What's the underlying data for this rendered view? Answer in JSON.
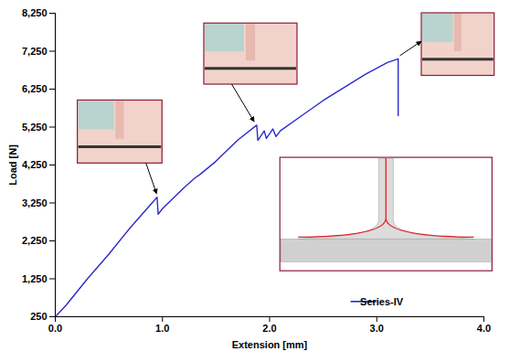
{
  "chart_data": {
    "type": "line",
    "x_label": "Extension [mm]",
    "y_label": "Load [N]",
    "x": [
      0,
      0.1,
      0.3,
      0.5,
      0.7,
      0.95,
      0.96,
      1.0,
      1.2,
      1.3,
      1.35,
      1.5,
      1.7,
      1.88,
      1.89,
      1.95,
      1.97,
      2.03,
      2.06,
      2.1,
      2.3,
      2.5,
      2.7,
      2.9,
      3.1,
      3.2,
      3.2
    ],
    "series": [
      {
        "name": "Series-IV",
        "color": "#2a2acb",
        "values": [
          250,
          550,
          1250,
          1900,
          2600,
          3400,
          2950,
          3100,
          3650,
          3900,
          4000,
          4350,
          4900,
          5300,
          4900,
          5150,
          4950,
          5200,
          5000,
          5150,
          5550,
          5950,
          6300,
          6650,
          6950,
          7050,
          5550
        ]
      }
    ],
    "xlim": [
      0,
      4
    ],
    "xticks": [
      0,
      1,
      2,
      3,
      4
    ],
    "ylim": [
      250,
      8250
    ],
    "yticks": [
      250,
      1250,
      2250,
      3250,
      4250,
      5250,
      6250,
      7250,
      8250
    ],
    "legend": "bottom-right"
  }
}
